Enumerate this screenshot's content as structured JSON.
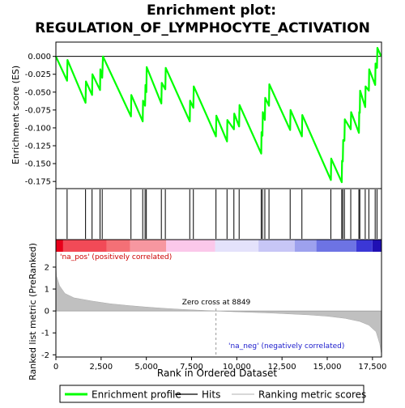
{
  "chart_data": {
    "type": "line",
    "title_line1": "Enrichment plot:",
    "title_line2": "REGULATION_OF_LYMPHOCYTE_ACTIVATION",
    "top_panel": {
      "ylabel": "Enrichment score (ES)",
      "ylim": [
        -0.185,
        0.02
      ],
      "yticks": [
        0.0,
        -0.025,
        -0.05,
        -0.075,
        -0.1,
        -0.125,
        -0.15,
        -0.175
      ],
      "ytick_labels": [
        "0.000",
        "-0.025",
        "-0.050",
        "-0.075",
        "-0.100",
        "-0.125",
        "-0.150",
        "-0.175"
      ],
      "series_name": "Enrichment profile",
      "line_color": "#00ff00",
      "es_points": [
        [
          0,
          0.0
        ],
        [
          620,
          -0.034
        ],
        [
          640,
          -0.005
        ],
        [
          1640,
          -0.065
        ],
        [
          1660,
          -0.035
        ],
        [
          2000,
          -0.054
        ],
        [
          2020,
          -0.025
        ],
        [
          2440,
          -0.047
        ],
        [
          2460,
          -0.018
        ],
        [
          2560,
          -0.03
        ],
        [
          2600,
          0.0
        ],
        [
          4150,
          -0.084
        ],
        [
          4170,
          -0.054
        ],
        [
          4800,
          -0.091
        ],
        [
          4820,
          -0.062
        ],
        [
          4930,
          -0.069
        ],
        [
          4950,
          -0.04
        ],
        [
          5000,
          -0.05
        ],
        [
          5020,
          -0.015
        ],
        [
          5830,
          -0.066
        ],
        [
          5850,
          -0.037
        ],
        [
          6050,
          -0.046
        ],
        [
          6070,
          -0.016
        ],
        [
          7400,
          -0.091
        ],
        [
          7420,
          -0.062
        ],
        [
          7600,
          -0.072
        ],
        [
          7620,
          -0.042
        ],
        [
          8850,
          -0.112
        ],
        [
          8870,
          -0.083
        ],
        [
          9460,
          -0.119
        ],
        [
          9480,
          -0.089
        ],
        [
          9840,
          -0.102
        ],
        [
          9860,
          -0.08
        ],
        [
          10130,
          -0.098
        ],
        [
          10150,
          -0.068
        ],
        [
          11350,
          -0.136
        ],
        [
          11370,
          -0.106
        ],
        [
          11420,
          -0.111
        ],
        [
          11440,
          -0.078
        ],
        [
          11550,
          -0.089
        ],
        [
          11570,
          -0.058
        ],
        [
          11780,
          -0.069
        ],
        [
          11800,
          -0.039
        ],
        [
          12950,
          -0.103
        ],
        [
          12970,
          -0.075
        ],
        [
          13600,
          -0.112
        ],
        [
          13620,
          -0.082
        ],
        [
          15200,
          -0.173
        ],
        [
          15220,
          -0.143
        ],
        [
          15800,
          -0.176
        ],
        [
          15820,
          -0.146
        ],
        [
          15860,
          -0.147
        ],
        [
          15880,
          -0.117
        ],
        [
          15950,
          -0.118
        ],
        [
          15970,
          -0.088
        ],
        [
          16300,
          -0.102
        ],
        [
          16320,
          -0.078
        ],
        [
          16750,
          -0.107
        ],
        [
          16770,
          -0.078
        ],
        [
          16800,
          -0.079
        ],
        [
          16820,
          -0.048
        ],
        [
          17100,
          -0.071
        ],
        [
          17120,
          -0.042
        ],
        [
          17300,
          -0.048
        ],
        [
          17320,
          -0.018
        ],
        [
          17650,
          -0.04
        ],
        [
          17670,
          -0.01
        ],
        [
          17750,
          -0.016
        ],
        [
          17770,
          0.012
        ],
        [
          17980,
          0.0
        ]
      ]
    },
    "hits_panel": {
      "series_name": "Hits",
      "hit_ranks": [
        620,
        1640,
        2000,
        2440,
        2560,
        4150,
        4800,
        4930,
        5000,
        5830,
        6050,
        7400,
        7600,
        8850,
        9460,
        9840,
        10130,
        11350,
        11420,
        11550,
        11780,
        12950,
        13600,
        15200,
        15800,
        15860,
        15950,
        16300,
        16750,
        16800,
        17100,
        17300,
        17650,
        17750
      ]
    },
    "heatmap_bar": {
      "segments": [
        [
          0,
          400,
          "#e8001a"
        ],
        [
          400,
          2800,
          "#f24a57"
        ],
        [
          2800,
          4100,
          "#f47076"
        ],
        [
          4100,
          6100,
          "#f797a0"
        ],
        [
          6100,
          8800,
          "#fbc8ea"
        ],
        [
          8800,
          11200,
          "#e4e2fb"
        ],
        [
          11200,
          13200,
          "#c7c6f6"
        ],
        [
          13200,
          14400,
          "#9da1ee"
        ],
        [
          14400,
          16600,
          "#6d73e4"
        ],
        [
          16600,
          17500,
          "#3b37d6"
        ],
        [
          17500,
          17980,
          "#1f0fb3"
        ]
      ]
    },
    "bottom_panel": {
      "ylabel": "Ranked list metric (PreRanked)",
      "ylim": [
        -2.1,
        2.7
      ],
      "yticks": [
        2,
        1,
        0,
        -1,
        -2
      ],
      "ytick_labels": [
        "2",
        "1",
        "0",
        "-1",
        "-2"
      ],
      "series_name": "Ranking metric scores",
      "fill_color": "#c0c0c0",
      "metric_points": [
        [
          0,
          2.4
        ],
        [
          30,
          1.6
        ],
        [
          200,
          1.15
        ],
        [
          500,
          0.8
        ],
        [
          1000,
          0.6
        ],
        [
          2000,
          0.45
        ],
        [
          3000,
          0.33
        ],
        [
          4000,
          0.25
        ],
        [
          5000,
          0.18
        ],
        [
          6000,
          0.12
        ],
        [
          7000,
          0.07
        ],
        [
          8000,
          0.03
        ],
        [
          8849,
          0.0
        ],
        [
          10000,
          -0.04
        ],
        [
          11000,
          -0.07
        ],
        [
          12000,
          -0.1
        ],
        [
          13000,
          -0.14
        ],
        [
          14000,
          -0.18
        ],
        [
          15000,
          -0.24
        ],
        [
          16000,
          -0.34
        ],
        [
          16800,
          -0.48
        ],
        [
          17300,
          -0.65
        ],
        [
          17700,
          -0.95
        ],
        [
          17900,
          -1.5
        ],
        [
          17980,
          -1.9
        ]
      ],
      "zero_cross_rank": 8849,
      "zero_cross_label": "Zero cross at 8849",
      "pos_label": "'na_pos' (positively correlated)",
      "neg_label": "'na_neg' (negatively correlated)"
    },
    "x_axis": {
      "label": "Rank in Ordered Dataset",
      "xlim": [
        0,
        18000
      ],
      "ticks": [
        0,
        2500,
        5000,
        7500,
        10000,
        12500,
        15000,
        17500
      ],
      "tick_labels": [
        "0",
        "2,500",
        "5,000",
        "7,500",
        "10,000",
        "12,500",
        "15,000",
        "17,500"
      ]
    },
    "legend": {
      "placement": "bottom",
      "items": [
        {
          "label": "Enrichment profile",
          "color": "#00ff00"
        },
        {
          "label": "Hits",
          "color": "#000000"
        },
        {
          "label": "Ranking metric scores",
          "color": "#c0c0c0"
        }
      ]
    }
  }
}
